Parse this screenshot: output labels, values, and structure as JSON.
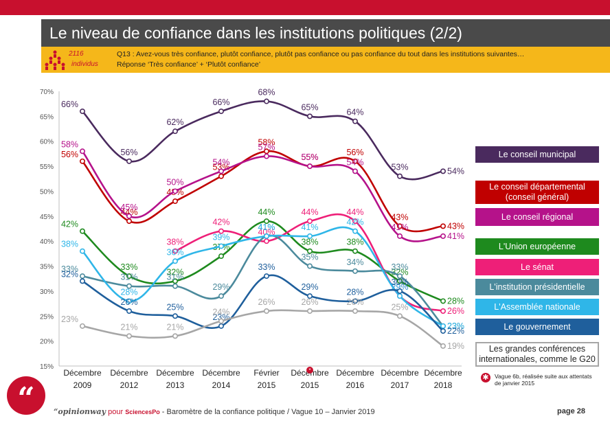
{
  "header": {
    "title": "Le niveau de confiance dans les institutions politiques (2/2)"
  },
  "question": {
    "base_count": "2116",
    "base_label": "individus",
    "text": "Q13 : Avez-vous très confiance, plutôt confiance, plutôt pas confiance ou pas confiance du tout dans les institutions suivantes…",
    "subtext": "Réponse ‘Très confiance’ + ‘Plutôt confiance’"
  },
  "chart_data": {
    "type": "line",
    "categories": [
      "Décembre 2009",
      "Décembre 2012",
      "Décembre 2013",
      "Décembre 2014",
      "Février 2015",
      "Décembre 2015",
      "Décembre 2016",
      "Décembre 2017",
      "Décembre 2018"
    ],
    "ylim": [
      15,
      70
    ],
    "yticks": [
      "15%",
      "20%",
      "25%",
      "30%",
      "35%",
      "40%",
      "45%",
      "50%",
      "55%",
      "60%",
      "65%",
      "70%"
    ],
    "grid": false,
    "legend_position": "right",
    "series": [
      {
        "name": "Le conseil municipal",
        "color": "#4a2a5e",
        "values": [
          66,
          56,
          62,
          66,
          68,
          65,
          64,
          53,
          54
        ]
      },
      {
        "name": "Le conseil départemental (conseil général)",
        "color": "#c00000",
        "values": [
          56,
          44,
          48,
          53,
          58,
          55,
          56,
          43,
          43
        ]
      },
      {
        "name": "Le conseil régional",
        "color": "#b5128a",
        "values": [
          58,
          45,
          50,
          54,
          57,
          55,
          54,
          41,
          41
        ]
      },
      {
        "name": "L'Union européenne",
        "color": "#1e8a1e",
        "values": [
          42,
          33,
          32,
          37,
          44,
          38,
          38,
          32,
          28
        ]
      },
      {
        "name": "Le sénat",
        "color": "#ee1f78",
        "values": [
          null,
          null,
          38,
          42,
          40,
          44,
          44,
          29,
          26
        ]
      },
      {
        "name": "L'institution présidentielle",
        "color": "#4b8a9c",
        "values": [
          33,
          31,
          31,
          29,
          41,
          35,
          34,
          33,
          23
        ]
      },
      {
        "name": "L'Assemblée nationale",
        "color": "#2fb6e8",
        "values": [
          38,
          28,
          36,
          39,
          41,
          41,
          42,
          29,
          23
        ]
      },
      {
        "name": "Le gouvernement",
        "color": "#1f5f9c",
        "values": [
          32,
          26,
          25,
          23,
          33,
          29,
          28,
          30,
          22
        ]
      },
      {
        "name": "Les grandes conférences internationales, comme le G20",
        "color": "#a6a6a6",
        "values": [
          23,
          21,
          21,
          24,
          26,
          26,
          26,
          25,
          19
        ]
      }
    ],
    "annotation_marker": "*"
  },
  "footnote": "Vague 6b, réalisée suite aux attentats de janvier 2015",
  "footer": {
    "brand": "“opinionway",
    "pour": "pour",
    "partner": "SciencesPo",
    "text": "- Baromètre de la confiance politique / Vague 10 – Janvier 2019",
    "page": "page 28"
  },
  "colors": {
    "topbar": "#c8102e",
    "titlebar": "#4a4a4a",
    "question_bg": "#f5b71a"
  }
}
